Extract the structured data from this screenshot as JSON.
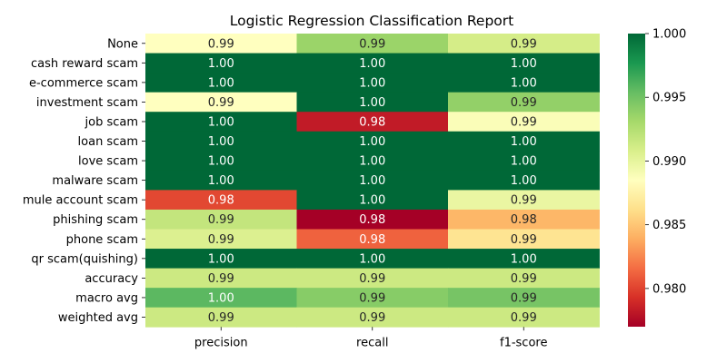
{
  "chart_data": {
    "type": "heatmap",
    "title": "Logistic Regression Classification Report",
    "xlabel": "",
    "ylabel": "",
    "columns": [
      "precision",
      "recall",
      "f1-score"
    ],
    "rows": [
      {
        "label": "None",
        "values": [
          0.9885,
          0.9935,
          0.991
        ],
        "text": [
          "0.99",
          "0.99",
          "0.99"
        ]
      },
      {
        "label": "cash reward scam",
        "values": [
          1.0,
          1.0,
          1.0
        ],
        "text": [
          "1.00",
          "1.00",
          "1.00"
        ]
      },
      {
        "label": "e-commerce scam",
        "values": [
          1.0,
          1.0,
          1.0
        ],
        "text": [
          "1.00",
          "1.00",
          "1.00"
        ]
      },
      {
        "label": "investment scam",
        "values": [
          0.9885,
          1.0,
          0.9938
        ],
        "text": [
          "0.99",
          "1.00",
          "0.99"
        ]
      },
      {
        "label": "job scam",
        "values": [
          1.0,
          0.9783,
          0.9888
        ],
        "text": [
          "1.00",
          "0.98",
          "0.99"
        ]
      },
      {
        "label": "loan scam",
        "values": [
          1.0,
          1.0,
          1.0
        ],
        "text": [
          "1.00",
          "1.00",
          "1.00"
        ]
      },
      {
        "label": "love scam",
        "values": [
          1.0,
          1.0,
          1.0
        ],
        "text": [
          "1.00",
          "1.00",
          "1.00"
        ]
      },
      {
        "label": "malware scam",
        "values": [
          1.0,
          1.0,
          1.0
        ],
        "text": [
          "1.00",
          "1.00",
          "1.00"
        ]
      },
      {
        "label": "mule account scam",
        "values": [
          0.9802,
          1.0,
          0.9898
        ],
        "text": [
          "0.98",
          "1.00",
          "0.99"
        ]
      },
      {
        "label": "phishing scam",
        "values": [
          0.9918,
          0.977,
          0.9843
        ],
        "text": [
          "0.99",
          "0.98",
          "0.98"
        ]
      },
      {
        "label": "phone scam",
        "values": [
          0.9906,
          0.9812,
          0.9865
        ],
        "text": [
          "0.99",
          "0.98",
          "0.99"
        ]
      },
      {
        "label": "qr scam(quishing)",
        "values": [
          1.0,
          1.0,
          1.0
        ],
        "text": [
          "1.00",
          "1.00",
          "1.00"
        ]
      },
      {
        "label": "accuracy",
        "values": [
          0.9914,
          0.9914,
          0.9914
        ],
        "text": [
          "0.99",
          "0.99",
          "0.99"
        ]
      },
      {
        "label": "macro avg",
        "values": [
          0.9957,
          0.9942,
          0.9948
        ],
        "text": [
          "1.00",
          "0.99",
          "0.99"
        ]
      },
      {
        "label": "weighted avg",
        "values": [
          0.9914,
          0.9914,
          0.9914
        ],
        "text": [
          "0.99",
          "0.99",
          "0.99"
        ]
      }
    ],
    "colorbar": {
      "min": 0.977,
      "max": 1.0,
      "ticks": [
        0.98,
        0.985,
        0.99,
        0.995,
        1.0
      ],
      "tick_labels": [
        "0.980",
        "0.985",
        "0.990",
        "0.995",
        "1.000"
      ],
      "colormap": "RdYlGn",
      "stops": [
        "#a50026",
        "#d73027",
        "#f46d43",
        "#fdae61",
        "#fee08b",
        "#ffffbf",
        "#d9ef8b",
        "#a6d96a",
        "#66bd63",
        "#1a9850",
        "#006837"
      ]
    },
    "annotation_colors": {
      "dark_text": "#262626",
      "light_text": "#ffffff"
    }
  }
}
